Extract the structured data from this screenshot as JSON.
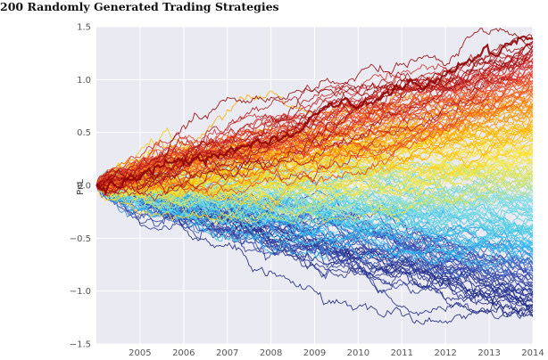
{
  "chart_data": {
    "type": "line",
    "title": "200 Randomly Generated Trading Strategies",
    "xlabel": "",
    "ylabel": "PnL",
    "xlim": [
      2004.0,
      2014.0
    ],
    "ylim": [
      -1.5,
      1.5
    ],
    "x_ticks": [
      "2005",
      "2006",
      "2007",
      "2008",
      "2009",
      "2010",
      "2011",
      "2012",
      "2013",
      "2014"
    ],
    "y_ticks": [
      "1.5",
      "1.0",
      "0.5",
      "0.0",
      "−0.5",
      "−1.0",
      "−1.5"
    ],
    "grid": true,
    "n_series": 200,
    "final_value_range": [
      -1.25,
      1.4
    ],
    "colormap": [
      "#1a237e",
      "#283593",
      "#3f51b5",
      "#29b6f6",
      "#4dd0e1",
      "#80deea",
      "#d4e157",
      "#ffeb3b",
      "#ffc107",
      "#ff9800",
      "#f4511e",
      "#d32f2f",
      "#8b0000"
    ],
    "background": "#eaeaf2"
  }
}
